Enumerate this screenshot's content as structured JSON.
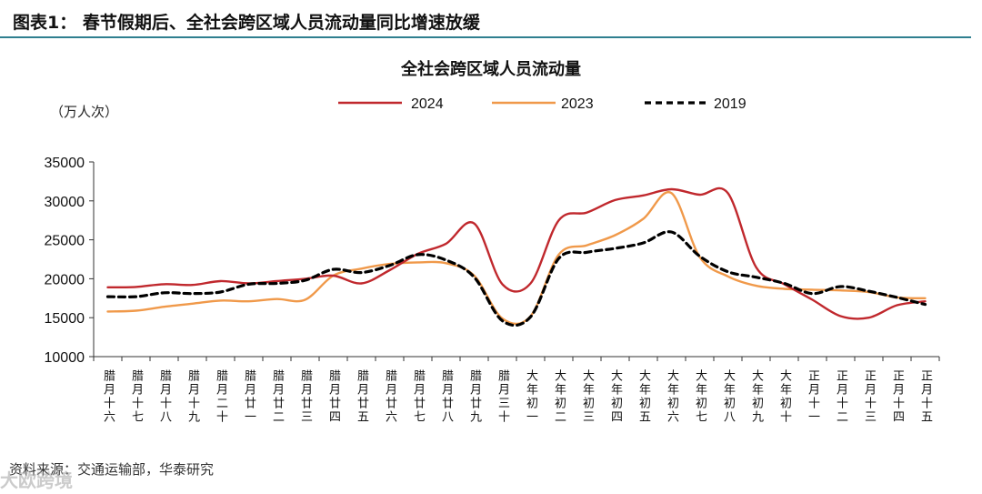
{
  "figure": {
    "title": "图表1：  春节假期后、全社会跨区域人员流动量同比增速放缓",
    "source": "资料来源：交通运输部，华泰研究",
    "watermark": "大欧跨境"
  },
  "colors": {
    "rule": "#2f7f8f",
    "series_2024": "#c0282d",
    "series_2023": "#f0994a",
    "series_2019": "#000000"
  },
  "chart_data": {
    "type": "line",
    "title": "全社会跨区域人员流动量",
    "ylabel": "（万人次）",
    "xlabel": "",
    "ylim": [
      10000,
      35000
    ],
    "yticks": [
      10000,
      15000,
      20000,
      25000,
      30000,
      35000
    ],
    "grid": false,
    "legend": "top",
    "categories": [
      "腊月十六",
      "腊月十七",
      "腊月十八",
      "腊月十九",
      "腊月二十",
      "腊月廿一",
      "腊月廿二",
      "腊月廿三",
      "腊月廿四",
      "腊月廿五",
      "腊月廿六",
      "腊月廿七",
      "腊月廿八",
      "腊月廿九",
      "腊月三十",
      "大年初一",
      "大年初二",
      "大年初三",
      "大年初四",
      "大年初五",
      "大年初六",
      "大年初七",
      "大年初八",
      "大年初九",
      "大年初十",
      "正月十一",
      "正月十二",
      "正月十三",
      "正月十四",
      "正月十五"
    ],
    "series": [
      {
        "name": "2024",
        "style": "solid",
        "values": [
          18900,
          18950,
          19300,
          19200,
          19700,
          19400,
          19700,
          20000,
          20400,
          19400,
          21100,
          23200,
          24500,
          27100,
          19300,
          19400,
          27500,
          28500,
          30100,
          30700,
          31500,
          30800,
          31000,
          21500,
          19300,
          17300,
          15200,
          15000,
          16600,
          17100
        ]
      },
      {
        "name": "2023",
        "style": "solid",
        "values": [
          15800,
          15900,
          16400,
          16800,
          17200,
          17100,
          17400,
          17300,
          20400,
          21300,
          21900,
          22100,
          22000,
          20400,
          14900,
          15200,
          23100,
          24300,
          25600,
          27700,
          31000,
          22800,
          20300,
          19100,
          18700,
          18600,
          18500,
          18300,
          17600,
          17500
        ]
      },
      {
        "name": "2019",
        "style": "dashed",
        "values": [
          17700,
          17700,
          18200,
          18100,
          18300,
          19300,
          19400,
          19800,
          21200,
          20800,
          21700,
          23100,
          22400,
          20200,
          14600,
          15100,
          22600,
          23400,
          23900,
          24600,
          26000,
          22900,
          20900,
          20200,
          19400,
          18100,
          19000,
          18400,
          17600,
          16700
        ]
      }
    ]
  }
}
